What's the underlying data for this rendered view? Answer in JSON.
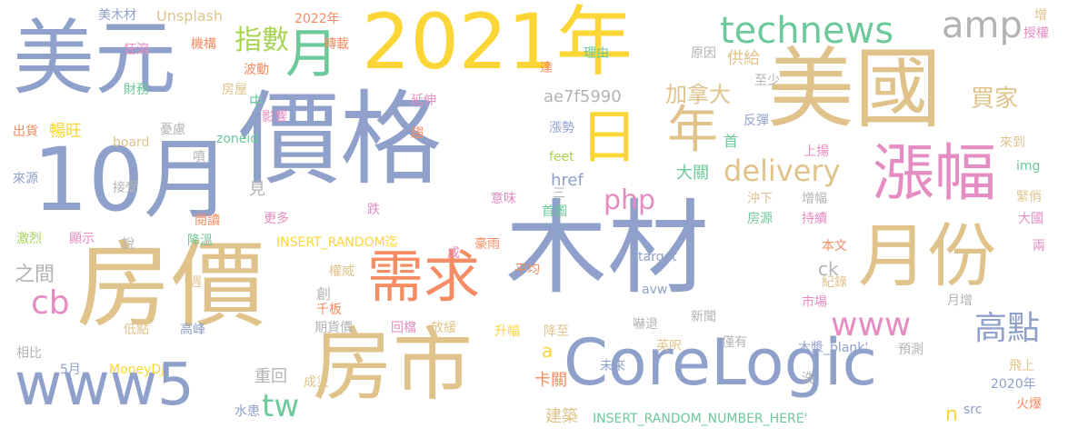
{
  "words": {
    "mucai": "木材",
    "jiage": "價格",
    "fangjia": "房價",
    "meiguo": "美國",
    "meiyuan": "美元",
    "y2021": "2021年",
    "oct": "10月",
    "fangshi": "房市",
    "corelogic": "CoreLogic",
    "yuefen": "月份",
    "zhangfu": "漲幅",
    "xuqiu": "需求",
    "www5": "www5",
    "technews": "technews",
    "ri": "日",
    "nian": "年",
    "yue": "月",
    "delivery": "delivery",
    "www": "www",
    "gaodian": "高點",
    "amp": "amp",
    "php": "php",
    "zhishu": "指數",
    "jianada": "加拿大",
    "cb": "cb",
    "tw": "tw",
    "maijia": "買家",
    "ae7f": "ae7f5990",
    "gongji": "供給",
    "zhijian": "之間",
    "changwang": "暢旺",
    "chonghui": "重回",
    "kaguan": "卡關",
    "jianzhu": "建築",
    "href": "href",
    "daguan": "大關",
    "insert1": "INSERT_RANDOM_NUMBER_HERE'",
    "insert2": "INSERT_RANDOM迄",
    "moneydj": "MoneyDJ",
    "unsplash": "Unsplash",
    "meimucai": "美木材",
    "board": "board",
    "zoneid": "zoneid",
    "feet": "feet",
    "target": "target",
    "avw": "avw",
    "src": "src",
    "img": "img",
    "ck": "ck",
    "n": "n",
    "a": "a",
    "y2022": "2022年",
    "y2020": "2020年",
    "blank": "木漿_blank'",
    "zhuanzai": "轉載",
    "jigou": "機構",
    "kuangxie": "狂瀉",
    "bodong": "波動",
    "caiwu": "財務",
    "fangwu": "房屋",
    "zhong": "中",
    "yingxiang": "影響",
    "yanshen": "延伸",
    "qu": "趨",
    "youlv": "憂慮",
    "chuhuo": "出貨",
    "pen": "噴",
    "laiyuan": "來源",
    "jieshou": "接受",
    "jian": "見",
    "yuedu": "閱讀",
    "gengduo": "更多",
    "die": "跌",
    "jilie": "激烈",
    "xianshi": "顯示",
    "shuo": "說",
    "jiangwen": "降溫",
    "chuang": "創",
    "quanwei": "權威",
    "qianban": "千板",
    "qihuojia": "期貨價",
    "huidang": "回檔",
    "fanghuan": "放緩",
    "shengfu": "升幅",
    "jiangzhi": "降至",
    "didian": "低點",
    "gaofeng": "高峰",
    "xiangbi": "相比",
    "may": "5月",
    "shuihuan": "水患",
    "chengzai": "成災",
    "cheng": "成",
    "haoyu": "豪雨",
    "pingjun": "平均",
    "yiwei": "意味",
    "shoutu": "首圖",
    "san": "三",
    "zhangshi": "漲勢",
    "da": "達",
    "liyou": "理由",
    "yuanyin": "原因",
    "zhishao": "至少",
    "fantan": "反彈",
    "shou": "首",
    "laidao": "來到",
    "shangyang": "上揚",
    "zengfu": "增幅",
    "chongxia": "沖下",
    "fangyuan": "房源",
    "chixu": "持續",
    "jinqiao": "緊俏",
    "daguo": "大國",
    "liang": "兩",
    "benwen": "本文",
    "jilu": "紀錄",
    "shichang": "市場",
    "yuezeng": "月增",
    "xiatui": "嚇退",
    "xinwen": "新聞",
    "yingchi": "英呎",
    "jinyou": "僅有",
    "weilai": "未來",
    "yuce": "預測",
    "xi": "洗",
    "feishang": "飛上",
    "huobao": "火爆",
    "zeng": "增",
    "shouquan": "授權",
    "zhou": "週"
  }
}
